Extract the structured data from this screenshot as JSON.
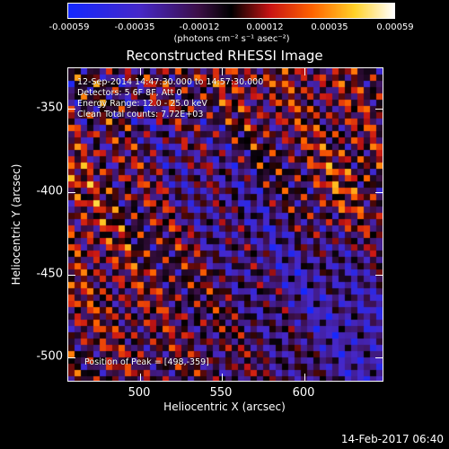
{
  "chart_data": {
    "type": "heatmap",
    "title": "Reconstructed RHESSI Image",
    "xlabel": "Heliocentric X (arcsec)",
    "ylabel": "Heliocentric Y (arcsec)",
    "xlim": [
      460,
      647
    ],
    "ylim": [
      -517,
      -330
    ],
    "xticks": [
      "500",
      "550",
      "600"
    ],
    "yticks": [
      "-350",
      "-400",
      "-450",
      "-500"
    ],
    "colorbar": {
      "ticks": [
        "-0.00059",
        "-0.00035",
        "-0.00012",
        "0.00012",
        "0.00035",
        "0.00059"
      ],
      "unit": "(photons cm⁻² s⁻¹ asec⁻²)",
      "range": [
        -0.00059,
        0.00059
      ]
    },
    "annotations": [
      "12-Sep-2014 14:47:30.000 to 14:57:30.000",
      "Detectors: 5 6F 8F, Att 0",
      "Energy Range: 12.0 - 25.0 keV",
      "Clean    Total counts: 7.72E+03"
    ],
    "peak_label": "Position of Peak = [498,-359]",
    "peak": [
      498,
      -359
    ]
  },
  "footer": {
    "timestamp": "14-Feb-2017 06:40"
  }
}
